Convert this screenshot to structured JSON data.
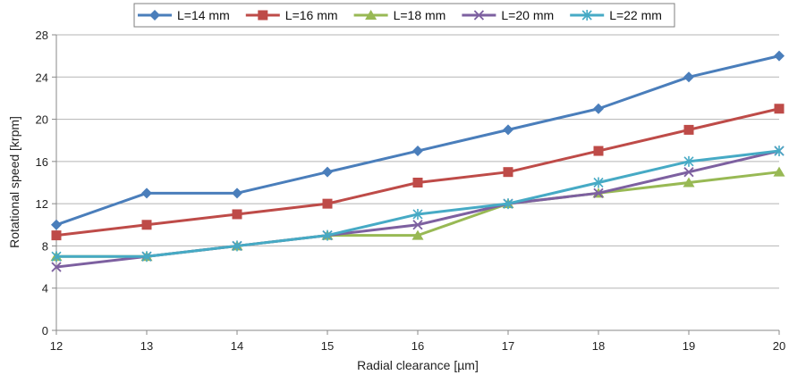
{
  "chart_data": {
    "type": "line",
    "title": "",
    "xlabel": "Radial clearance [µm]",
    "ylabel": "Rotational speed [krpm]",
    "x": [
      12,
      13,
      14,
      15,
      16,
      17,
      18,
      19,
      20
    ],
    "xlim": [
      12,
      20
    ],
    "ylim": [
      0,
      28
    ],
    "yticks": [
      0,
      4,
      8,
      12,
      16,
      20,
      24,
      28
    ],
    "grid": "horizontal",
    "legend_position": "top",
    "series": [
      {
        "name": "L=14 mm",
        "color": "#4a7ebb",
        "marker": "diamond",
        "values": [
          10,
          13,
          13,
          15,
          17,
          19,
          21,
          24,
          26
        ]
      },
      {
        "name": "L=16 mm",
        "color": "#be4b48",
        "marker": "square",
        "values": [
          9,
          10,
          11,
          12,
          14,
          15,
          17,
          19,
          21
        ]
      },
      {
        "name": "L=18 mm",
        "color": "#98b954",
        "marker": "triangle",
        "values": [
          7,
          7,
          8,
          9,
          9,
          12,
          13,
          14,
          15
        ]
      },
      {
        "name": "L=20 mm",
        "color": "#7d60a0",
        "marker": "x",
        "values": [
          6,
          7,
          8,
          9,
          10,
          12,
          13,
          15,
          17
        ]
      },
      {
        "name": "L=22 mm",
        "color": "#46aac5",
        "marker": "star",
        "values": [
          7,
          7,
          8,
          9,
          11,
          12,
          14,
          16,
          17
        ]
      }
    ]
  }
}
